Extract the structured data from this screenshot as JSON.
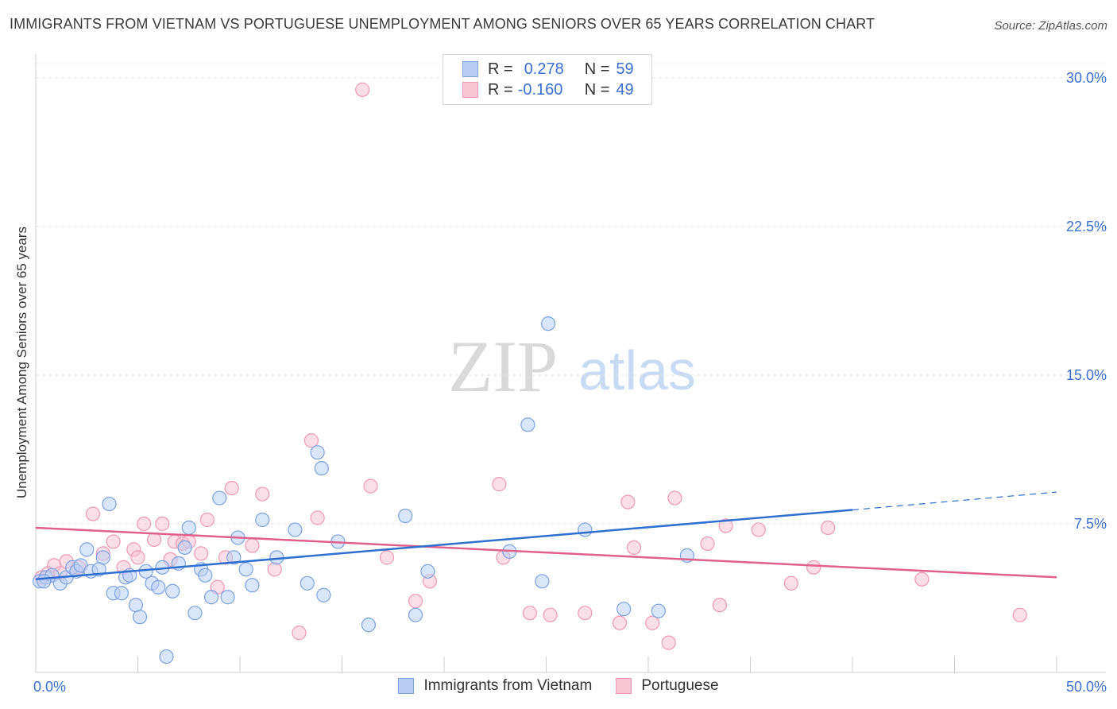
{
  "title": "IMMIGRANTS FROM VIETNAM VS PORTUGUESE UNEMPLOYMENT AMONG SENIORS OVER 65 YEARS CORRELATION CHART",
  "source": "Source: ZipAtlas.com",
  "watermark": {
    "zip": "ZIP",
    "atlas": "atlas"
  },
  "legend": {
    "vietnam": {
      "r_label": "R =",
      "r_value": "0.278",
      "n_label": "N =",
      "n_value": "59"
    },
    "portuguese": {
      "r_label": "R =",
      "r_value": "-0.160",
      "n_label": "N =",
      "n_value": "49"
    }
  },
  "colors": {
    "vietnam_fill": "#b9cff5",
    "vietnam_stroke": "#7ea2e0",
    "vietnam_line": "#2e6fcf",
    "portuguese_fill": "#f8c3d3",
    "portuguese_stroke": "#ee9ab5",
    "portuguese_line": "#e0608c",
    "tick_label": "#3a6fd1",
    "grid": "#e2e2e2"
  },
  "chart_data": {
    "type": "scatter",
    "title": "IMMIGRANTS FROM VIETNAM VS PORTUGUESE UNEMPLOYMENT AMONG SENIORS OVER 65 YEARS CORRELATION CHART",
    "xlabel": "",
    "ylabel": "Unemployment Among Seniors over 65 years",
    "xlim": [
      0,
      50
    ],
    "ylim": [
      0,
      31.2
    ],
    "x_tick_labels": [
      "0.0%",
      "50.0%"
    ],
    "y_ticks": [
      7.5,
      15.0,
      22.5,
      30.0
    ],
    "y_tick_labels": [
      "7.5%",
      "15.0%",
      "22.5%",
      "30.0%"
    ],
    "series": [
      {
        "name": "Immigrants from Vietnam",
        "trend": {
          "x_solid": [
            0,
            40
          ],
          "y_solid": [
            4.7,
            8.2
          ],
          "x_dashed": [
            40,
            50
          ],
          "y_dashed": [
            8.2,
            9.1
          ]
        },
        "points": [
          [
            0.2,
            4.6
          ],
          [
            0.5,
            4.8
          ],
          [
            0.8,
            4.9
          ],
          [
            1.2,
            4.5
          ],
          [
            1.5,
            4.8
          ],
          [
            1.8,
            5.3
          ],
          [
            2.0,
            5.1
          ],
          [
            2.2,
            5.4
          ],
          [
            2.7,
            5.1
          ],
          [
            2.5,
            6.2
          ],
          [
            3.1,
            5.2
          ],
          [
            3.3,
            5.8
          ],
          [
            3.6,
            8.5
          ],
          [
            3.8,
            4.0
          ],
          [
            4.2,
            4.0
          ],
          [
            4.4,
            4.8
          ],
          [
            4.6,
            4.9
          ],
          [
            4.9,
            3.4
          ],
          [
            5.1,
            2.8
          ],
          [
            5.4,
            5.1
          ],
          [
            5.7,
            4.5
          ],
          [
            6.0,
            4.3
          ],
          [
            6.2,
            5.3
          ],
          [
            6.4,
            0.8
          ],
          [
            6.7,
            4.1
          ],
          [
            7.0,
            5.5
          ],
          [
            7.3,
            6.3
          ],
          [
            7.5,
            7.3
          ],
          [
            7.8,
            3.0
          ],
          [
            8.1,
            5.2
          ],
          [
            8.3,
            4.9
          ],
          [
            8.6,
            3.8
          ],
          [
            9.0,
            8.8
          ],
          [
            9.4,
            3.8
          ],
          [
            9.7,
            5.8
          ],
          [
            9.9,
            6.8
          ],
          [
            10.3,
            5.2
          ],
          [
            10.6,
            4.4
          ],
          [
            11.1,
            7.7
          ],
          [
            11.8,
            5.8
          ],
          [
            12.7,
            7.2
          ],
          [
            13.3,
            4.5
          ],
          [
            13.8,
            11.1
          ],
          [
            14.0,
            10.3
          ],
          [
            14.1,
            3.9
          ],
          [
            14.8,
            6.6
          ],
          [
            16.3,
            2.4
          ],
          [
            18.1,
            7.9
          ],
          [
            18.6,
            2.9
          ],
          [
            19.2,
            5.1
          ],
          [
            23.2,
            6.1
          ],
          [
            24.1,
            12.5
          ],
          [
            24.8,
            4.6
          ],
          [
            25.1,
            17.6
          ],
          [
            26.9,
            7.2
          ],
          [
            28.8,
            3.2
          ],
          [
            30.5,
            3.1
          ],
          [
            31.9,
            5.9
          ],
          [
            0.4,
            4.6
          ]
        ]
      },
      {
        "name": "Portuguese",
        "trend": {
          "x_solid": [
            0,
            50
          ],
          "y_solid": [
            7.3,
            4.8
          ]
        },
        "points": [
          [
            0.3,
            4.8
          ],
          [
            0.6,
            5.0
          ],
          [
            0.9,
            5.4
          ],
          [
            1.2,
            5.0
          ],
          [
            1.5,
            5.6
          ],
          [
            2.1,
            5.3
          ],
          [
            2.8,
            8.0
          ],
          [
            3.3,
            6.0
          ],
          [
            3.8,
            6.6
          ],
          [
            4.3,
            5.3
          ],
          [
            4.8,
            6.2
          ],
          [
            5.0,
            5.8
          ],
          [
            5.3,
            7.5
          ],
          [
            5.8,
            6.7
          ],
          [
            6.2,
            7.5
          ],
          [
            6.6,
            5.7
          ],
          [
            6.8,
            6.6
          ],
          [
            7.2,
            6.5
          ],
          [
            7.5,
            6.6
          ],
          [
            8.1,
            6.0
          ],
          [
            8.4,
            7.7
          ],
          [
            8.9,
            4.3
          ],
          [
            9.3,
            5.8
          ],
          [
            9.6,
            9.3
          ],
          [
            10.6,
            6.4
          ],
          [
            11.1,
            9.0
          ],
          [
            11.7,
            5.2
          ],
          [
            12.9,
            2.0
          ],
          [
            13.5,
            11.7
          ],
          [
            13.8,
            7.8
          ],
          [
            16.0,
            29.4
          ],
          [
            16.4,
            9.4
          ],
          [
            17.2,
            5.8
          ],
          [
            18.6,
            3.6
          ],
          [
            19.3,
            4.6
          ],
          [
            22.7,
            9.5
          ],
          [
            22.9,
            5.8
          ],
          [
            24.2,
            3.0
          ],
          [
            25.2,
            2.9
          ],
          [
            26.9,
            3.0
          ],
          [
            28.6,
            2.5
          ],
          [
            29.0,
            8.6
          ],
          [
            29.3,
            6.3
          ],
          [
            30.2,
            2.5
          ],
          [
            31.0,
            1.5
          ],
          [
            31.3,
            8.8
          ],
          [
            32.9,
            6.5
          ],
          [
            33.5,
            3.4
          ],
          [
            33.8,
            7.4
          ]
        ]
      }
    ]
  },
  "extra_portuguese_points_note": "",
  "portuguese_extra": [
    [
      35.4,
      7.2
    ],
    [
      37.0,
      4.5
    ],
    [
      38.1,
      5.3
    ],
    [
      38.8,
      7.3
    ],
    [
      43.4,
      4.7
    ],
    [
      48.2,
      2.9
    ]
  ],
  "bottom_legend": {
    "vietnam": "Immigrants from Vietnam",
    "portuguese": "Portuguese"
  }
}
